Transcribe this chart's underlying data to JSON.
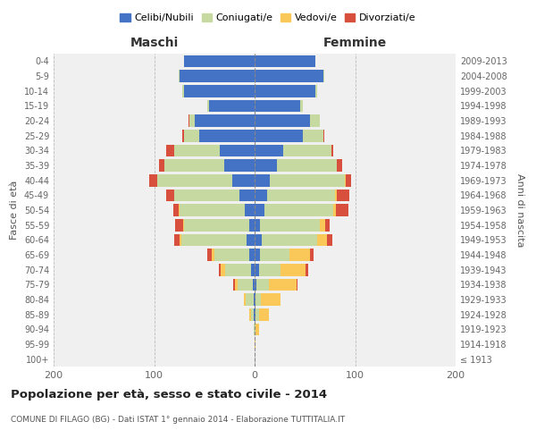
{
  "age_groups": [
    "100+",
    "95-99",
    "90-94",
    "85-89",
    "80-84",
    "75-79",
    "70-74",
    "65-69",
    "60-64",
    "55-59",
    "50-54",
    "45-49",
    "40-44",
    "35-39",
    "30-34",
    "25-29",
    "20-24",
    "15-19",
    "10-14",
    "5-9",
    "0-4"
  ],
  "birth_years": [
    "≤ 1913",
    "1914-1918",
    "1919-1923",
    "1924-1928",
    "1929-1933",
    "1934-1938",
    "1939-1943",
    "1944-1948",
    "1949-1953",
    "1954-1958",
    "1959-1963",
    "1964-1968",
    "1969-1973",
    "1974-1978",
    "1979-1983",
    "1984-1988",
    "1989-1993",
    "1994-1998",
    "1999-2003",
    "2004-2008",
    "2009-2013"
  ],
  "maschi": {
    "celibi": [
      0,
      0,
      0,
      1,
      1,
      2,
      4,
      5,
      8,
      5,
      10,
      15,
      22,
      30,
      35,
      55,
      60,
      45,
      70,
      75,
      70
    ],
    "coniugati": [
      0,
      0,
      1,
      3,
      8,
      15,
      25,
      35,
      65,
      65,
      65,
      65,
      75,
      60,
      45,
      15,
      5,
      2,
      2,
      1,
      0
    ],
    "vedovi": [
      0,
      0,
      0,
      1,
      2,
      3,
      5,
      3,
      2,
      1,
      1,
      0,
      0,
      0,
      0,
      0,
      0,
      0,
      0,
      0,
      0
    ],
    "divorziati": [
      0,
      0,
      0,
      0,
      0,
      1,
      2,
      4,
      5,
      8,
      5,
      8,
      8,
      5,
      8,
      2,
      1,
      0,
      0,
      0,
      0
    ]
  },
  "femmine": {
    "nubili": [
      0,
      0,
      0,
      1,
      1,
      2,
      4,
      5,
      7,
      5,
      10,
      12,
      15,
      22,
      28,
      48,
      55,
      45,
      60,
      68,
      60
    ],
    "coniugate": [
      0,
      0,
      1,
      3,
      5,
      12,
      22,
      30,
      55,
      60,
      68,
      68,
      75,
      60,
      48,
      20,
      10,
      3,
      2,
      1,
      0
    ],
    "vedove": [
      0,
      1,
      3,
      10,
      20,
      28,
      25,
      20,
      10,
      5,
      3,
      2,
      1,
      0,
      0,
      0,
      0,
      0,
      0,
      0,
      0
    ],
    "divorziate": [
      0,
      0,
      0,
      0,
      0,
      1,
      2,
      4,
      5,
      5,
      12,
      12,
      5,
      5,
      2,
      1,
      0,
      0,
      0,
      0,
      0
    ]
  },
  "colors": {
    "celibi_nubili": "#4472C4",
    "coniugati": "#C5D9A0",
    "vedovi": "#FAC858",
    "divorziati": "#D94F3D"
  },
  "xlim": 200,
  "title": "Popolazione per età, sesso e stato civile - 2014",
  "subtitle": "COMUNE DI FILAGO (BG) - Dati ISTAT 1° gennaio 2014 - Elaborazione TUTTITALIA.IT",
  "xlabel_maschi": "Maschi",
  "xlabel_femmine": "Femmine",
  "ylabel_left": "Fasce di età",
  "ylabel_right": "Anni di nascita",
  "legend_labels": [
    "Celibi/Nubili",
    "Coniugati/e",
    "Vedovi/e",
    "Divorziati/e"
  ],
  "background_color": "#ffffff",
  "grid_color": "#cccccc",
  "ax_bg_color": "#f0f0f0"
}
